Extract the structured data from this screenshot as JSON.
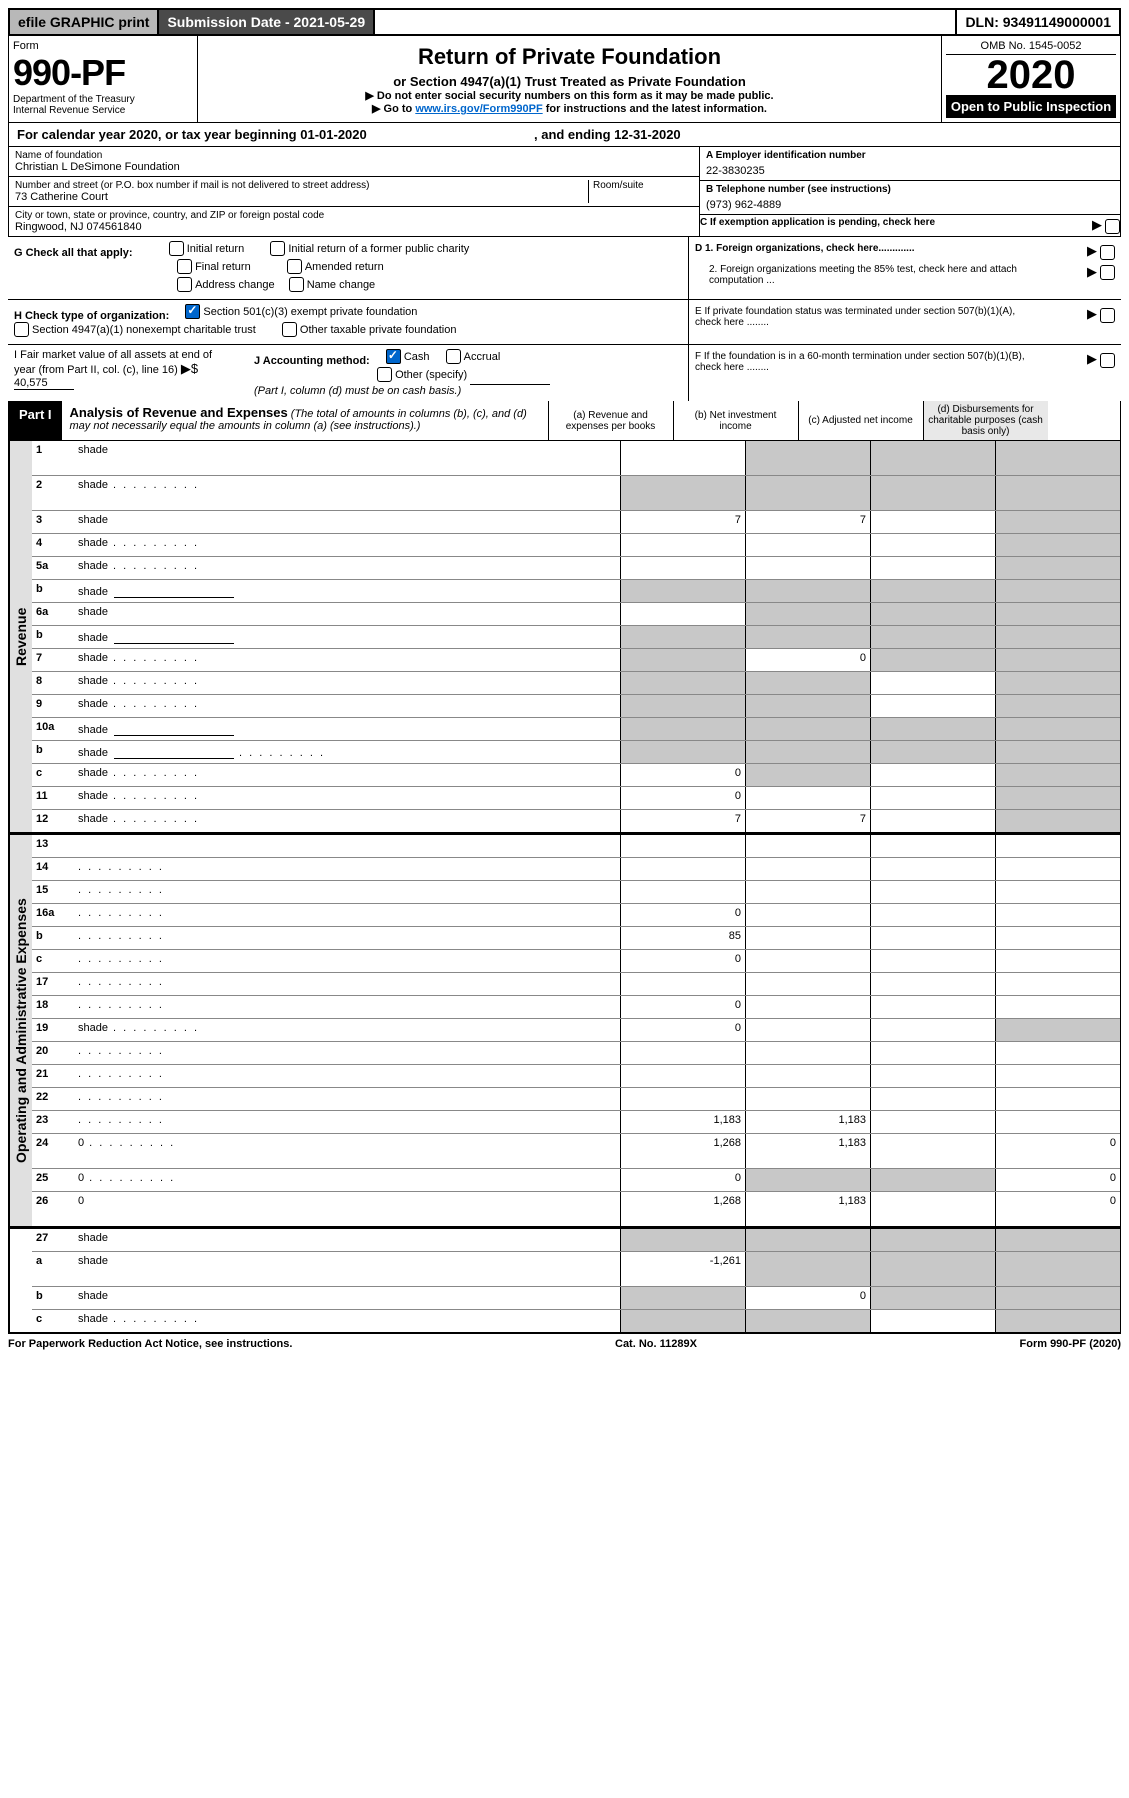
{
  "topbar": {
    "efile": "efile GRAPHIC print",
    "subdate_label": "Submission Date - ",
    "subdate": "2021-05-29",
    "dln_label": "DLN: ",
    "dln": "93491149000001"
  },
  "header": {
    "form_label": "Form",
    "form_no": "990-PF",
    "dept": "Department of the Treasury\nInternal Revenue Service",
    "title": "Return of Private Foundation",
    "subtitle": "or Section 4947(a)(1) Trust Treated as Private Foundation",
    "instr1": "▶ Do not enter social security numbers on this form as it may be made public.",
    "instr2_pre": "▶ Go to ",
    "instr2_link": "www.irs.gov/Form990PF",
    "instr2_post": " for instructions and the latest information.",
    "omb": "OMB No. 1545-0052",
    "year": "2020",
    "open": "Open to Public Inspection"
  },
  "calyear": {
    "pre": "For calendar year 2020, or tax year beginning ",
    "begin": "01-01-2020",
    "mid": " , and ending ",
    "end": "12-31-2020"
  },
  "info": {
    "name_label": "Name of foundation",
    "name": "Christian L DeSimone Foundation",
    "addr_label": "Number and street (or P.O. box number if mail is not delivered to street address)",
    "addr": "73 Catherine Court",
    "room_label": "Room/suite",
    "city_label": "City or town, state or province, country, and ZIP or foreign postal code",
    "city": "Ringwood, NJ  074561840",
    "ein_label": "A Employer identification number",
    "ein": "22-3830235",
    "phone_label": "B Telephone number (see instructions)",
    "phone": "(973) 962-4889",
    "c_label": "C If exemption application is pending, check here",
    "d1": "D 1. Foreign organizations, check here.............",
    "d2": "2. Foreign organizations meeting the 85% test, check here and attach computation ...",
    "e_label": "E  If private foundation status was terminated under section 507(b)(1)(A), check here ........",
    "f_label": "F  If the foundation is in a 60-month termination under section 507(b)(1)(B), check here ........"
  },
  "g": {
    "label": "G Check all that apply:",
    "o1": "Initial return",
    "o2": "Initial return of a former public charity",
    "o3": "Final return",
    "o4": "Amended return",
    "o5": "Address change",
    "o6": "Name change"
  },
  "h": {
    "label": "H Check type of organization:",
    "o1": "Section 501(c)(3) exempt private foundation",
    "o2": "Section 4947(a)(1) nonexempt charitable trust",
    "o3": "Other taxable private foundation"
  },
  "i": {
    "label": "I Fair market value of all assets at end of year (from Part II, col. (c), line 16)",
    "arrow": "▶$",
    "val": "40,575"
  },
  "j": {
    "label": "J Accounting method:",
    "o1": "Cash",
    "o2": "Accrual",
    "o3": "Other (specify)",
    "note": "(Part I, column (d) must be on cash basis.)"
  },
  "part1": {
    "label": "Part I",
    "title": "Analysis of Revenue and Expenses",
    "note": " (The total of amounts in columns (b), (c), and (d) may not necessarily equal the amounts in column (a) (see instructions).)",
    "col_a": "(a)   Revenue and expenses per books",
    "col_b": "(b)   Net investment income",
    "col_c": "(c)   Adjusted net income",
    "col_d": "(d)  Disbursements for charitable purposes (cash basis only)"
  },
  "sidelabels": {
    "rev": "Revenue",
    "exp": "Operating and Administrative Expenses"
  },
  "rows": [
    {
      "n": "1",
      "d": "shade",
      "a": "",
      "b": "shade",
      "c": "shade",
      "tall": true
    },
    {
      "n": "2",
      "d": "shade",
      "a": "shade",
      "b": "shade",
      "c": "shade",
      "tall": true,
      "dots": true
    },
    {
      "n": "3",
      "d": "shade",
      "a": "7",
      "b": "7",
      "c": ""
    },
    {
      "n": "4",
      "d": "shade",
      "a": "",
      "b": "",
      "c": "",
      "dots": true
    },
    {
      "n": "5a",
      "d": "shade",
      "a": "",
      "b": "",
      "c": "",
      "dots": true
    },
    {
      "n": "b",
      "d": "shade",
      "a": "shade",
      "b": "shade",
      "c": "shade",
      "inline_box": true
    },
    {
      "n": "6a",
      "d": "shade",
      "a": "",
      "b": "shade",
      "c": "shade"
    },
    {
      "n": "b",
      "d": "shade",
      "a": "shade",
      "b": "shade",
      "c": "shade",
      "inline_box": true
    },
    {
      "n": "7",
      "d": "shade",
      "a": "shade",
      "b": "0",
      "c": "shade",
      "dots": true
    },
    {
      "n": "8",
      "d": "shade",
      "a": "shade",
      "b": "shade",
      "c": "",
      "dots": true
    },
    {
      "n": "9",
      "d": "shade",
      "a": "shade",
      "b": "shade",
      "c": "",
      "dots": true
    },
    {
      "n": "10a",
      "d": "shade",
      "a": "shade",
      "b": "shade",
      "c": "shade",
      "inline_box": true
    },
    {
      "n": "b",
      "d": "shade",
      "a": "shade",
      "b": "shade",
      "c": "shade",
      "dots": true,
      "inline_box": true
    },
    {
      "n": "c",
      "d": "shade",
      "a": "0",
      "b": "shade",
      "c": "",
      "dots": true
    },
    {
      "n": "11",
      "d": "shade",
      "a": "0",
      "b": "",
      "c": "",
      "dots": true
    },
    {
      "n": "12",
      "d": "shade",
      "a": "7",
      "b": "7",
      "c": "",
      "dots": true
    }
  ],
  "exp_rows": [
    {
      "n": "13",
      "d": "",
      "a": "",
      "b": "",
      "c": ""
    },
    {
      "n": "14",
      "d": "",
      "a": "",
      "b": "",
      "c": "",
      "dots": true
    },
    {
      "n": "15",
      "d": "",
      "a": "",
      "b": "",
      "c": "",
      "dots": true
    },
    {
      "n": "16a",
      "d": "",
      "a": "0",
      "b": "",
      "c": "",
      "dots": true
    },
    {
      "n": "b",
      "d": "",
      "a": "85",
      "b": "",
      "c": "",
      "dots": true
    },
    {
      "n": "c",
      "d": "",
      "a": "0",
      "b": "",
      "c": "",
      "dots": true
    },
    {
      "n": "17",
      "d": "",
      "a": "",
      "b": "",
      "c": "",
      "dots": true
    },
    {
      "n": "18",
      "d": "",
      "a": "0",
      "b": "",
      "c": "",
      "dots": true
    },
    {
      "n": "19",
      "d": "shade",
      "a": "0",
      "b": "",
      "c": "",
      "dots": true
    },
    {
      "n": "20",
      "d": "",
      "a": "",
      "b": "",
      "c": "",
      "dots": true
    },
    {
      "n": "21",
      "d": "",
      "a": "",
      "b": "",
      "c": "",
      "dots": true
    },
    {
      "n": "22",
      "d": "",
      "a": "",
      "b": "",
      "c": "",
      "dots": true
    },
    {
      "n": "23",
      "d": "",
      "a": "1,183",
      "b": "1,183",
      "c": "",
      "dots": true
    },
    {
      "n": "24",
      "d": "0",
      "a": "1,268",
      "b": "1,183",
      "c": "",
      "dots": true,
      "tall": true
    },
    {
      "n": "25",
      "d": "0",
      "a": "0",
      "b": "shade",
      "c": "shade",
      "dots": true
    },
    {
      "n": "26",
      "d": "0",
      "a": "1,268",
      "b": "1,183",
      "c": "",
      "tall": true
    }
  ],
  "final_rows": [
    {
      "n": "27",
      "d": "shade",
      "a": "shade",
      "b": "shade",
      "c": "shade"
    },
    {
      "n": "a",
      "d": "shade",
      "a": "-1,261",
      "b": "shade",
      "c": "shade",
      "tall": true
    },
    {
      "n": "b",
      "d": "shade",
      "a": "shade",
      "b": "0",
      "c": "shade"
    },
    {
      "n": "c",
      "d": "shade",
      "a": "shade",
      "b": "shade",
      "c": "",
      "dots": true
    }
  ],
  "footer": {
    "left": "For Paperwork Reduction Act Notice, see instructions.",
    "mid": "Cat. No. 11289X",
    "right": "Form 990-PF (2020)"
  }
}
